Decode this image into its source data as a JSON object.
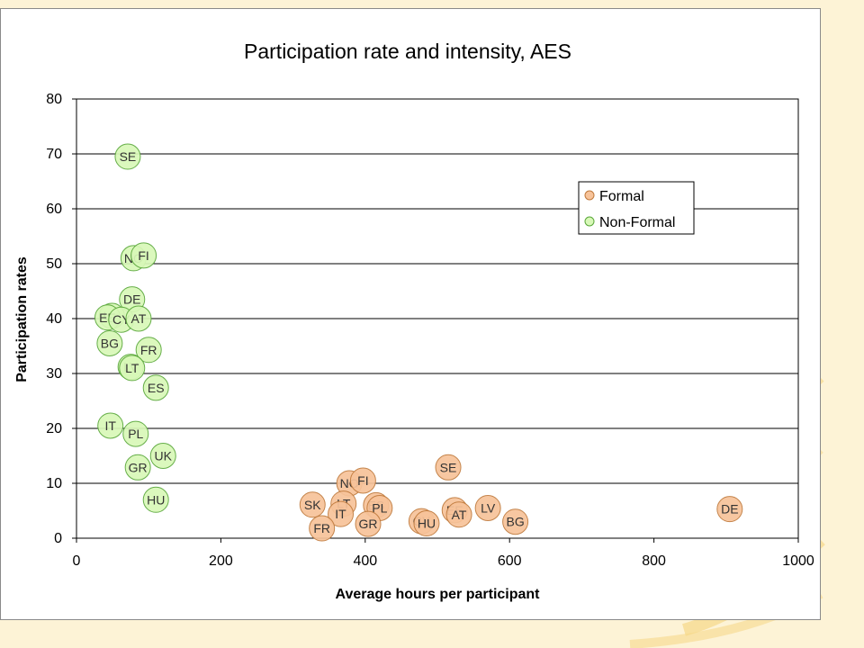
{
  "chart_data": {
    "type": "scatter",
    "title": "Participation rate and intensity, AES",
    "xlabel": "Average hours per participant",
    "ylabel": "Participation rates",
    "xlim": [
      0,
      1000
    ],
    "ylim": [
      0,
      80
    ],
    "xticks": [
      0,
      200,
      400,
      600,
      800,
      1000
    ],
    "yticks": [
      0,
      10,
      20,
      30,
      40,
      50,
      60,
      70,
      80
    ],
    "grid": "horizontal",
    "legend_position": "top-right",
    "series": [
      {
        "name": "Formal",
        "color": "#f7c39a",
        "stroke": "#c07a3c",
        "points": [
          {
            "label": "SE",
            "x": 515,
            "y": 12.9
          },
          {
            "label": "NO",
            "x": 378,
            "y": 10.0
          },
          {
            "label": "FI",
            "x": 397,
            "y": 10.5
          },
          {
            "label": "SK",
            "x": 327,
            "y": 6.1
          },
          {
            "label": "LT",
            "x": 370,
            "y": 6.3
          },
          {
            "label": "ES",
            "x": 415,
            "y": 6.0
          },
          {
            "label": "PL",
            "x": 420,
            "y": 5.5
          },
          {
            "label": "IT",
            "x": 366,
            "y": 4.4
          },
          {
            "label": "FR",
            "x": 340,
            "y": 1.8
          },
          {
            "label": "GR",
            "x": 404,
            "y": 2.6
          },
          {
            "label": "CY",
            "x": 478,
            "y": 3.1
          },
          {
            "label": "HU",
            "x": 485,
            "y": 2.7
          },
          {
            "label": "EE",
            "x": 524,
            "y": 5.1
          },
          {
            "label": "AT",
            "x": 530,
            "y": 4.3
          },
          {
            "label": "LV",
            "x": 570,
            "y": 5.5
          },
          {
            "label": "BG",
            "x": 608,
            "y": 3.0
          },
          {
            "label": "DE",
            "x": 905,
            "y": 5.3
          }
        ]
      },
      {
        "name": "Non-Formal",
        "color": "#d8f8b8",
        "stroke": "#5aa83a",
        "points": [
          {
            "label": "SE",
            "x": 71,
            "y": 69.5
          },
          {
            "label": "NO",
            "x": 79,
            "y": 51.0
          },
          {
            "label": "FI",
            "x": 93,
            "y": 51.5
          },
          {
            "label": "DE",
            "x": 77,
            "y": 43.5
          },
          {
            "label": "UK",
            "x": 49,
            "y": 40.5
          },
          {
            "label": "EE",
            "x": 43,
            "y": 40.2
          },
          {
            "label": "CY",
            "x": 62,
            "y": 39.8
          },
          {
            "label": "AT",
            "x": 86,
            "y": 40.0
          },
          {
            "label": "BG",
            "x": 46,
            "y": 35.5
          },
          {
            "label": "FR",
            "x": 100,
            "y": 34.3
          },
          {
            "label": "LV",
            "x": 75,
            "y": 31.2
          },
          {
            "label": "LT",
            "x": 77,
            "y": 31.0
          },
          {
            "label": "ES",
            "x": 110,
            "y": 27.4
          },
          {
            "label": "IT",
            "x": 47,
            "y": 20.5
          },
          {
            "label": "PL",
            "x": 82,
            "y": 19.0
          },
          {
            "label": "UK",
            "x": 120,
            "y": 15.0
          },
          {
            "label": "GR",
            "x": 85,
            "y": 12.9
          },
          {
            "label": "HU",
            "x": 110,
            "y": 7.0
          }
        ]
      }
    ]
  }
}
